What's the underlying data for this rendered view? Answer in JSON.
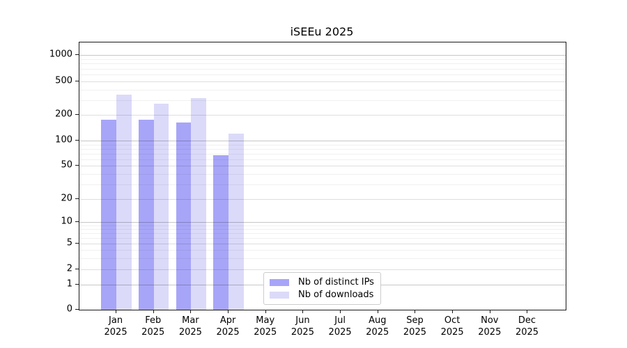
{
  "chart_data": {
    "type": "bar",
    "title": "iSEEu 2025",
    "categories": [
      "Jan",
      "Feb",
      "Mar",
      "Apr",
      "May",
      "Jun",
      "Jul",
      "Aug",
      "Sep",
      "Oct",
      "Nov",
      "Dec"
    ],
    "x_year_label": "2025",
    "series": [
      {
        "name": "Nb of distinct IPs",
        "color": "#a7a5f7",
        "values": [
          175,
          175,
          163,
          67,
          null,
          null,
          null,
          null,
          null,
          null,
          null,
          null
        ]
      },
      {
        "name": "Nb of downloads",
        "color": "#dbdaf9",
        "values": [
          345,
          270,
          318,
          120,
          null,
          null,
          null,
          null,
          null,
          null,
          null,
          null
        ]
      }
    ],
    "yaxis": {
      "scale": "symlog-like",
      "tick_values": [
        1000,
        500,
        200,
        100,
        50,
        20,
        10,
        5,
        2,
        1,
        0
      ],
      "minor_tick_values": [
        900,
        800,
        700,
        600,
        400,
        300,
        90,
        80,
        70,
        60,
        40,
        30,
        9,
        8,
        7,
        6,
        4,
        3
      ],
      "anchors": [
        {
          "value": 0,
          "frac": 1.0
        },
        {
          "value": 1,
          "frac": 0.907
        },
        {
          "value": 2,
          "frac": 0.849
        },
        {
          "value": 5,
          "frac": 0.7534
        },
        {
          "value": 10,
          "frac": 0.6727
        },
        {
          "value": 20,
          "frac": 0.5852
        },
        {
          "value": 50,
          "frac": 0.4617
        },
        {
          "value": 100,
          "frac": 0.3672
        },
        {
          "value": 200,
          "frac": 0.2716
        },
        {
          "value": 500,
          "frac": 0.145
        },
        {
          "value": 1000,
          "frac": 0.0477
        }
      ]
    },
    "xaxis": {
      "first_tick_frac": 0.076,
      "tick_step_frac": 0.0769,
      "bar_width_frac": 0.0311
    },
    "grid": {
      "on": true,
      "above_bars": true,
      "color_power10": "rgba(0,0,0,0.22)",
      "color_labeled": "rgba(0,0,0,0.13)",
      "color_minor": "rgba(0,0,0,0.06)"
    },
    "legend": {
      "position": "lower center",
      "entries": [
        "Nb of distinct IPs",
        "Nb of downloads"
      ]
    }
  }
}
